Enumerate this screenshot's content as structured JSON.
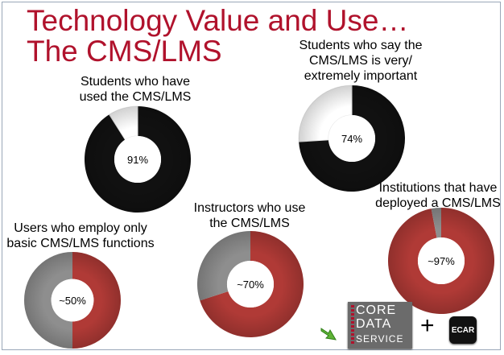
{
  "title": {
    "line1": "Technology Value and Use…",
    "line2": "The CMS/LMS"
  },
  "colors": {
    "title": "#b0122c",
    "black": "#111111",
    "red": "#b03a36",
    "gray": "#8e8e8e",
    "white": "#ffffff"
  },
  "chart_data": [
    {
      "type": "pie",
      "label_lines": [
        "Students who have",
        "used the CMS/LMS"
      ],
      "center_label": "91%",
      "value": 91,
      "colors": [
        "black",
        "white"
      ]
    },
    {
      "type": "pie",
      "label_lines": [
        "Students who say the",
        "CMS/LMS is very/",
        "extremely important"
      ],
      "center_label": "74%",
      "value": 74,
      "colors": [
        "black",
        "white"
      ]
    },
    {
      "type": "pie",
      "label_lines": [
        "Users who employ only",
        "basic CMS/LMS functions"
      ],
      "center_label": "~50%",
      "value": 50,
      "colors": [
        "red",
        "gray"
      ]
    },
    {
      "type": "pie",
      "label_lines": [
        "Instructors who use",
        "the CMS/LMS"
      ],
      "center_label": "~70%",
      "value": 70,
      "colors": [
        "red",
        "gray"
      ]
    },
    {
      "type": "pie",
      "label_lines": [
        "Institutions that have",
        "deployed a CMS/LMS"
      ],
      "center_label": "~97%",
      "value": 97,
      "colors": [
        "red",
        "gray"
      ]
    }
  ],
  "footer": {
    "logo_lines": [
      "CORE",
      "DATA",
      "SERVICE"
    ],
    "plus": "+",
    "ecar": "ECAR",
    "arrow_icon": "green-arrow-icon"
  }
}
